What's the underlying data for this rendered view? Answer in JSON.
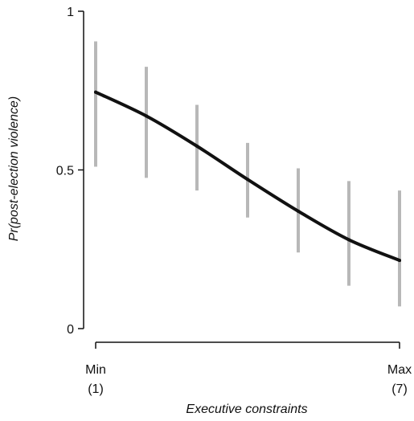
{
  "chart_data": {
    "type": "line",
    "x": [
      1,
      2,
      3,
      4,
      5,
      6,
      7
    ],
    "series": [
      {
        "values": [
          0.745,
          0.67,
          0.575,
          0.47,
          0.37,
          0.28,
          0.215
        ],
        "ci_lower": [
          0.51,
          0.475,
          0.435,
          0.35,
          0.24,
          0.135,
          0.07
        ],
        "ci_upper": [
          0.905,
          0.825,
          0.705,
          0.585,
          0.505,
          0.465,
          0.435
        ]
      }
    ],
    "xlabel": "Executive constraints",
    "ylabel": "Pr(post-election violence)",
    "xlim": [
      1,
      7
    ],
    "ylim": [
      0,
      1
    ],
    "x_ticks": [
      {
        "value": 1,
        "line1": "Min",
        "line2": "(1)"
      },
      {
        "value": 7,
        "line1": "Max",
        "line2": "(7)"
      }
    ],
    "y_ticks": [
      {
        "value": 0,
        "label": "0"
      },
      {
        "value": 0.5,
        "label": "0.5"
      },
      {
        "value": 1,
        "label": "1"
      }
    ],
    "grid": false,
    "colors": {
      "line": "#111111",
      "ci": "#b8b8b8",
      "axis": "#111111"
    }
  }
}
